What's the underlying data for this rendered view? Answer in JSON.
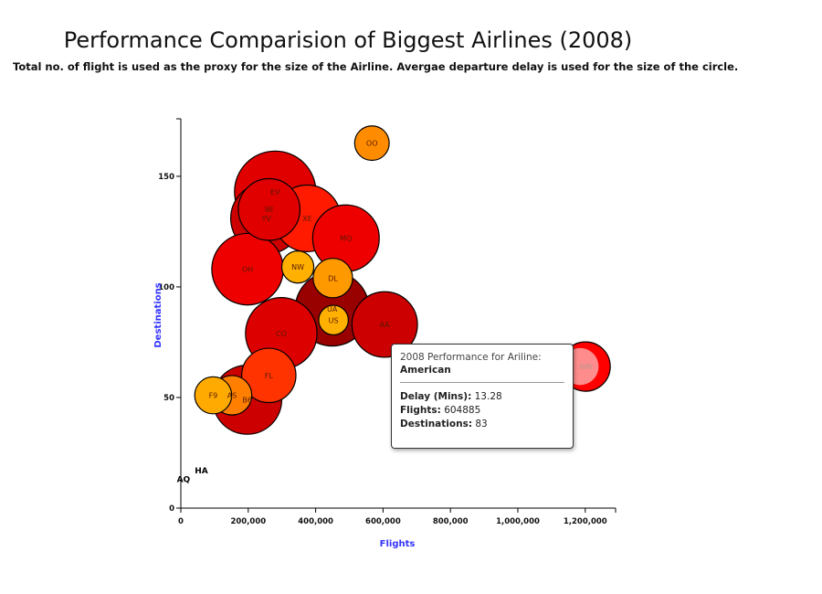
{
  "chart_data": {
    "type": "scatter",
    "title": "Performance Comparision of Biggest Airlines (2008)",
    "subtitle": "Total no. of flight is used as the proxy for the size of the Airline. Avergae departure delay is used for the size of the circle.",
    "xlabel": "Flights",
    "ylabel": "Destinations",
    "xlim": [
      0,
      1290000
    ],
    "ylim": [
      0,
      176
    ],
    "xticks": [
      "0",
      "200,000",
      "400,000",
      "600,000",
      "800,000",
      "1,000,000",
      "1,200,000"
    ],
    "yticks": [
      "0",
      "50",
      "100",
      "150"
    ],
    "size_encoding": "Average departure delay (minutes)",
    "points": [
      {
        "code": "OO",
        "flights": 567000,
        "destinations": 165,
        "delay": 7.0,
        "color": "#ff8c00"
      },
      {
        "code": "EV",
        "flights": 280000,
        "destinations": 143,
        "delay": 16.5,
        "color": "#e00000"
      },
      {
        "code": "9E",
        "flights": 262000,
        "destinations": 135,
        "delay": 12.5,
        "color": "#e00000"
      },
      {
        "code": "YV",
        "flights": 254000,
        "destinations": 131,
        "delay": 14.5,
        "color": "#cc0000"
      },
      {
        "code": "XE",
        "flights": 375000,
        "destinations": 131,
        "delay": 13.5,
        "color": "#ff1a00"
      },
      {
        "code": "MQ",
        "flights": 490000,
        "destinations": 122,
        "delay": 13.5,
        "color": "#ee0000"
      },
      {
        "code": "OH",
        "flights": 198000,
        "destinations": 108,
        "delay": 14.5,
        "color": "#ee0000"
      },
      {
        "code": "NW",
        "flights": 347000,
        "destinations": 109,
        "delay": 6.5,
        "color": "#ffb000"
      },
      {
        "code": "DL",
        "flights": 451000,
        "destinations": 104,
        "delay": 8.0,
        "color": "#ff9900"
      },
      {
        "code": "UA",
        "flights": 449000,
        "destinations": 90,
        "delay": 15.0,
        "color": "#990000"
      },
      {
        "code": "US",
        "flights": 453000,
        "destinations": 85,
        "delay": 6.0,
        "color": "#ffb000"
      },
      {
        "code": "AA",
        "flights": 604885,
        "destinations": 83,
        "delay": 13.28,
        "color": "#cc0000"
      },
      {
        "code": "CO",
        "flights": 298000,
        "destinations": 79,
        "delay": 14.5,
        "color": "#dd0000"
      },
      {
        "code": "WN",
        "flights": 1201000,
        "destinations": 64,
        "delay": 10.0,
        "color": "#ff0000"
      },
      {
        "code": "FL",
        "flights": 261000,
        "destinations": 60,
        "delay": 11.0,
        "color": "#ff3300"
      },
      {
        "code": "B6",
        "flights": 197000,
        "destinations": 49,
        "delay": 14.0,
        "color": "#cc0000"
      },
      {
        "code": "AS",
        "flights": 152000,
        "destinations": 51,
        "delay": 8.0,
        "color": "#ff8000"
      },
      {
        "code": "F9",
        "flights": 96000,
        "destinations": 51,
        "delay": 7.5,
        "color": "#ffaa00"
      },
      {
        "code": "HA",
        "flights": 61000,
        "destinations": 17,
        "delay": 0,
        "color": "#ffcc00"
      },
      {
        "code": "AQ",
        "flights": 7800,
        "destinations": 13,
        "delay": 0,
        "color": "#ffcc00"
      }
    ]
  },
  "tooltip": {
    "heading": "2008 Performance for Ariline:",
    "airline": "American",
    "delay_label": "Delay (Mins):",
    "delay_value": "13.28",
    "flights_label": "Flights:",
    "flights_value": "604885",
    "dest_label": "Destinations:",
    "dest_value": "83"
  }
}
